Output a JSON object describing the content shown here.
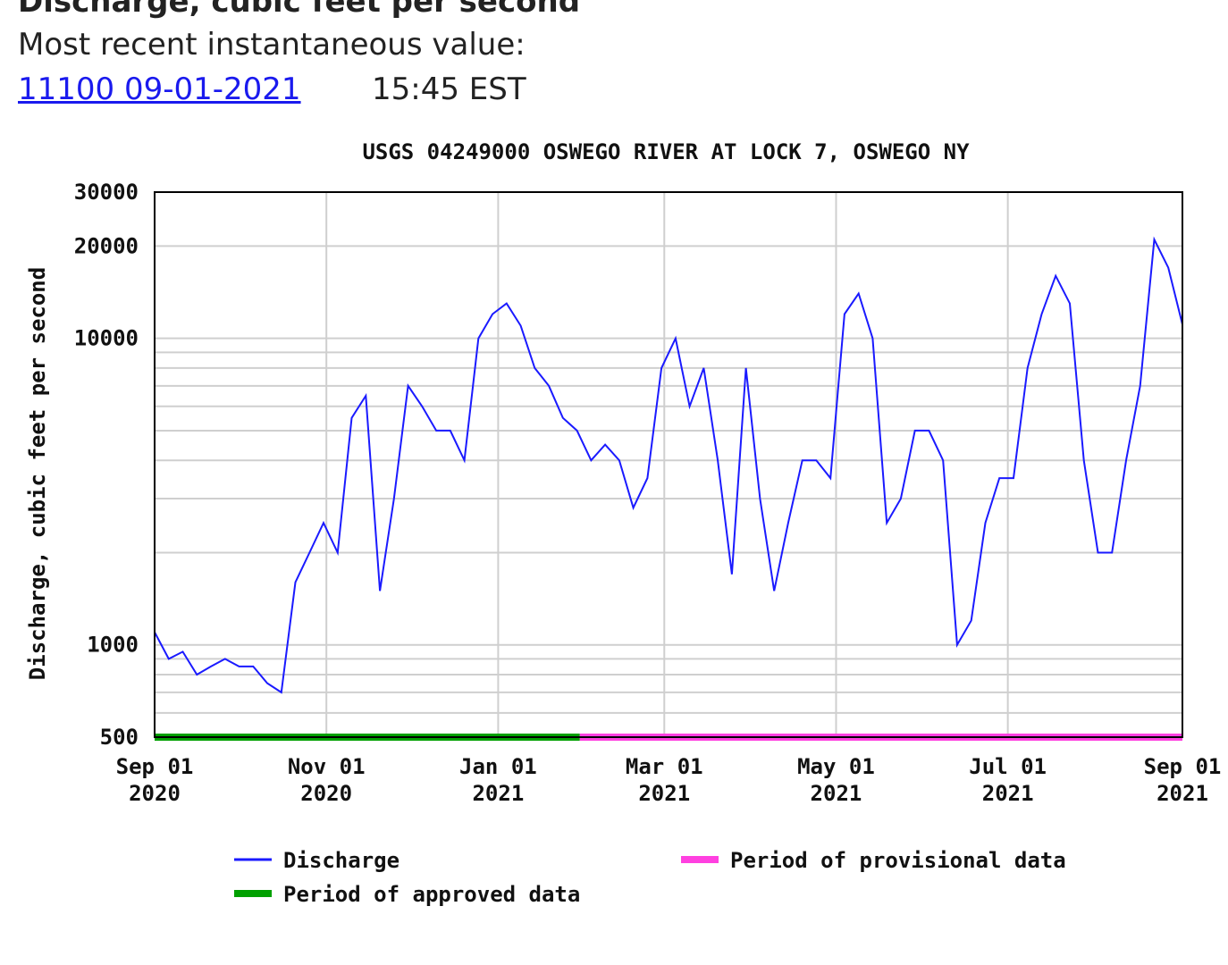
{
  "header": {
    "heading": "Discharge, cubic feet per second",
    "recent_label": "Most recent instantaneous value:",
    "recent_link": "11100 09-01-2021",
    "recent_time": "15:45 EST"
  },
  "chart_data": {
    "type": "line",
    "title": "USGS 04249000 OSWEGO RIVER AT LOCK 7, OSWEGO NY",
    "y_label": "Discharge, cubic feet per second",
    "log_y": true,
    "grid": true,
    "ylim": [
      500,
      30000
    ],
    "yticks": [
      500,
      1000,
      10000,
      20000,
      30000
    ],
    "minor_yticks": [
      600,
      700,
      800,
      900,
      2000,
      3000,
      4000,
      5000,
      6000,
      7000,
      8000,
      9000
    ],
    "xlim": [
      "2020-09-01",
      "2021-09-01"
    ],
    "xticks": [
      {
        "value": "2020-09-01",
        "label": "Sep 01\n2020"
      },
      {
        "value": "2020-11-01",
        "label": "Nov 01\n2020"
      },
      {
        "value": "2021-01-01",
        "label": "Jan 01\n2021"
      },
      {
        "value": "2021-03-01",
        "label": "Mar 01\n2021"
      },
      {
        "value": "2021-05-01",
        "label": "May 01\n2021"
      },
      {
        "value": "2021-07-01",
        "label": "Jul 01\n2021"
      },
      {
        "value": "2021-09-01",
        "label": "Sep 01\n2021"
      }
    ],
    "x": [
      "2020-09-01",
      "2020-09-06",
      "2020-09-11",
      "2020-09-16",
      "2020-09-21",
      "2020-09-26",
      "2020-10-01",
      "2020-10-06",
      "2020-10-11",
      "2020-10-16",
      "2020-10-21",
      "2020-10-26",
      "2020-10-31",
      "2020-11-05",
      "2020-11-10",
      "2020-11-15",
      "2020-11-20",
      "2020-11-25",
      "2020-11-30",
      "2020-12-05",
      "2020-12-10",
      "2020-12-15",
      "2020-12-20",
      "2020-12-25",
      "2020-12-30",
      "2021-01-04",
      "2021-01-09",
      "2021-01-14",
      "2021-01-19",
      "2021-01-24",
      "2021-01-29",
      "2021-02-03",
      "2021-02-08",
      "2021-02-13",
      "2021-02-18",
      "2021-02-23",
      "2021-02-28",
      "2021-03-05",
      "2021-03-10",
      "2021-03-15",
      "2021-03-20",
      "2021-03-25",
      "2021-03-30",
      "2021-04-04",
      "2021-04-09",
      "2021-04-14",
      "2021-04-19",
      "2021-04-24",
      "2021-04-29",
      "2021-05-04",
      "2021-05-09",
      "2021-05-14",
      "2021-05-19",
      "2021-05-24",
      "2021-05-29",
      "2021-06-03",
      "2021-06-08",
      "2021-06-13",
      "2021-06-18",
      "2021-06-23",
      "2021-06-28",
      "2021-07-03",
      "2021-07-08",
      "2021-07-13",
      "2021-07-18",
      "2021-07-23",
      "2021-07-28",
      "2021-08-02",
      "2021-08-07",
      "2021-08-12",
      "2021-08-17",
      "2021-08-22",
      "2021-08-27",
      "2021-09-01"
    ],
    "series": [
      {
        "name": "Discharge",
        "color": "#1a1aff",
        "values": [
          1100,
          900,
          950,
          800,
          850,
          900,
          850,
          850,
          750,
          700,
          1600,
          2000,
          2500,
          2000,
          5500,
          6500,
          1500,
          3000,
          7000,
          6000,
          5000,
          5000,
          4000,
          10000,
          12000,
          13000,
          11000,
          8000,
          7000,
          5500,
          5000,
          4000,
          4500,
          4000,
          2800,
          3500,
          8000,
          10000,
          6000,
          8000,
          4000,
          1700,
          8000,
          3000,
          1500,
          2500,
          4000,
          4000,
          3500,
          12000,
          14000,
          10000,
          2500,
          3000,
          5000,
          5000,
          4000,
          1000,
          1200,
          2500,
          3500,
          3500,
          8000,
          12000,
          16000,
          13000,
          4000,
          2000,
          2000,
          4000,
          7000,
          21000,
          17000,
          11100
        ]
      }
    ],
    "periods": [
      {
        "name": "Period of approved data",
        "color": "#00a000",
        "start": "2020-09-01",
        "end": "2021-01-30"
      },
      {
        "name": "Period of provisional data",
        "color": "#ff40e0",
        "start": "2021-01-30",
        "end": "2021-09-01"
      }
    ]
  }
}
